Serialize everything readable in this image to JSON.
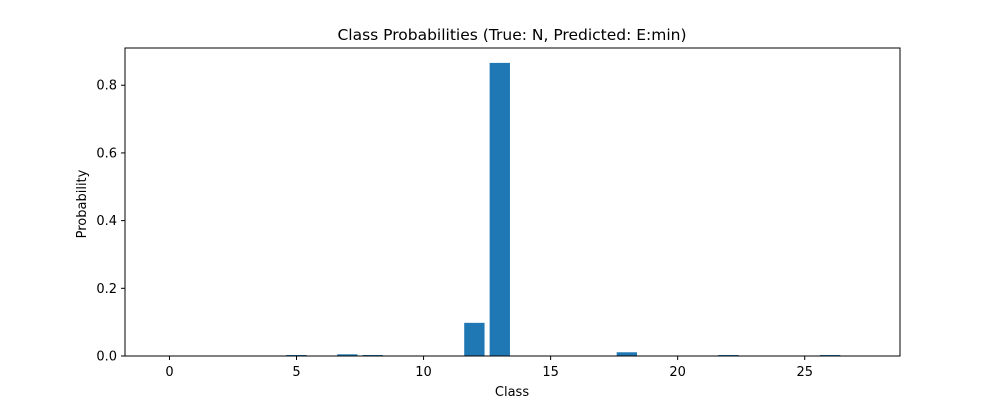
{
  "chart_data": {
    "type": "bar",
    "title": "Class Probabilities (True: N, Predicted: E:min)",
    "xlabel": "Class",
    "ylabel": "Probability",
    "xlim": [
      -1.75,
      28.75
    ],
    "ylim": [
      0,
      0.91
    ],
    "xticks": [
      0,
      5,
      10,
      15,
      20,
      25
    ],
    "yticks": [
      0.0,
      0.2,
      0.4,
      0.6,
      0.8
    ],
    "ytick_labels": [
      "0.0",
      "0.2",
      "0.4",
      "0.6",
      "0.8"
    ],
    "grid": false,
    "bar_color": "#1f77b4",
    "categories": [
      0,
      1,
      2,
      3,
      4,
      5,
      6,
      7,
      8,
      9,
      10,
      11,
      12,
      13,
      14,
      15,
      16,
      17,
      18,
      19,
      20,
      21,
      22,
      23,
      24,
      25,
      26,
      27
    ],
    "values": [
      0.0005,
      0.0003,
      0.0003,
      0.0003,
      0.0003,
      0.003,
      0.0005,
      0.005,
      0.003,
      0.0003,
      0.0003,
      0.0003,
      0.098,
      0.866,
      0.0005,
      0.0003,
      0.0003,
      0.0003,
      0.011,
      0.0003,
      0.0003,
      0.0003,
      0.003,
      0.0003,
      0.0003,
      0.0003,
      0.003,
      0.0003
    ]
  }
}
